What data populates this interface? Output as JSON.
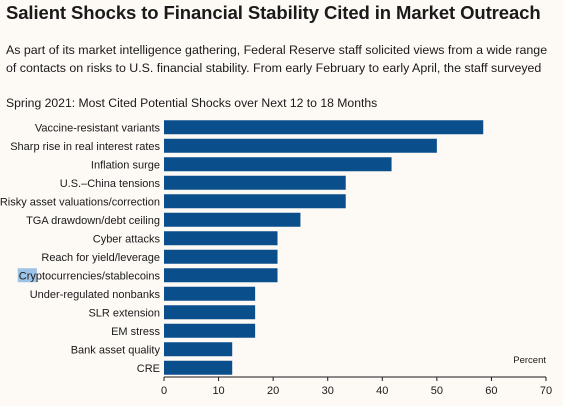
{
  "page": {
    "title": "Salient Shocks to Financial Stability Cited in Market Outreach",
    "intro_lines": [
      "As part of its market intelligence gathering, Federal Reserve staff solicited views from a wide range",
      "of contacts on risks to U.S. financial stability. From early February to early April, the staff surveyed"
    ]
  },
  "colors": {
    "bar": "#0a4f8b",
    "highlight": "#9dc3e6",
    "axis": "#1a1a1a"
  },
  "chart_data": {
    "type": "bar",
    "orientation": "horizontal",
    "title": "Spring 2021: Most Cited Potential Shocks over Next 12 to 18 Months",
    "xlabel": "Percent",
    "xlim": [
      0,
      70
    ],
    "xticks": [
      0,
      10,
      20,
      30,
      40,
      50,
      60,
      70
    ],
    "grid": false,
    "highlighted_text": "Cry",
    "categories": [
      "Vaccine-resistant variants",
      "Sharp rise in real interest rates",
      "Inflation surge",
      "U.S.–China tensions",
      "Risky asset valuations/correction",
      "TGA drawdown/debt ceiling",
      "Cyber attacks",
      "Reach for yield/leverage",
      "Cryptocurrencies/stablecoins",
      "Under-regulated nonbanks",
      "SLR extension",
      "EM stress",
      "Bank asset quality",
      "CRE"
    ],
    "values": [
      58.5,
      50,
      41.7,
      33.3,
      33.3,
      25,
      20.8,
      20.8,
      20.8,
      16.7,
      16.7,
      16.7,
      12.5,
      12.5
    ]
  }
}
